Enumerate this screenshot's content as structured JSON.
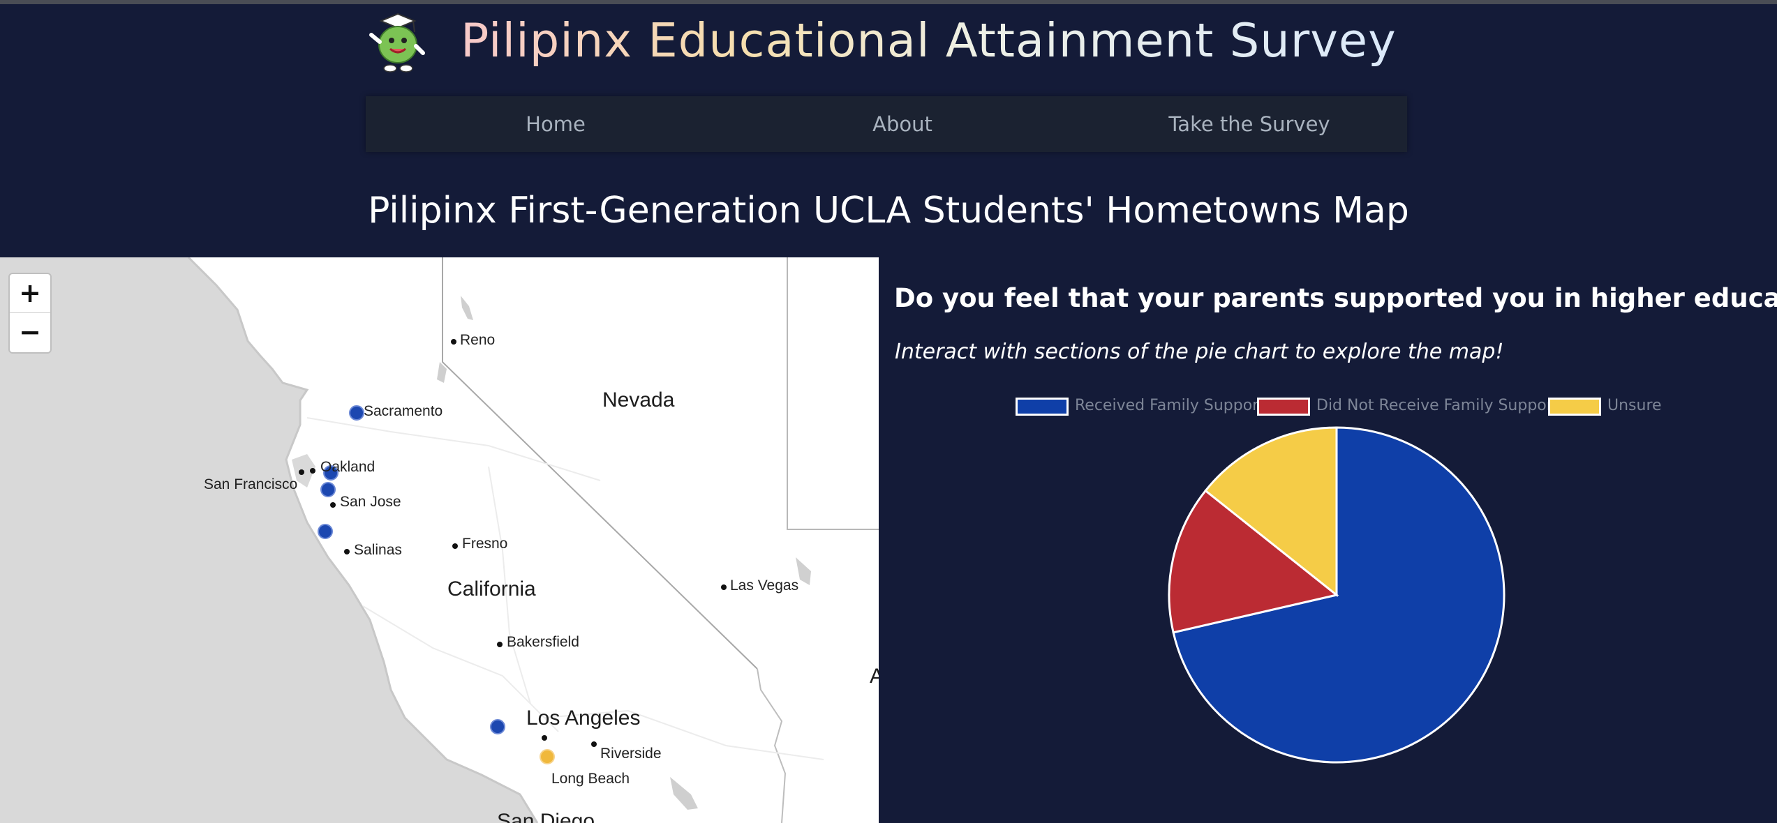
{
  "header": {
    "title": "Pilipinx Educational Attainment Survey",
    "mascot_icon": "graduate-mascot-icon"
  },
  "nav": {
    "items": [
      {
        "label": "Home"
      },
      {
        "label": "About"
      },
      {
        "label": "Take the Survey"
      }
    ]
  },
  "page": {
    "heading": "Pilipinx First-Generation UCLA Students' Hometowns Map"
  },
  "map": {
    "zoom_in_label": "+",
    "zoom_out_label": "−",
    "labels": {
      "reno": "Reno",
      "nevada": "Nevada",
      "sacramento": "Sacramento",
      "oakland": "Oakland",
      "san_francisco": "San Francisco",
      "san_jose": "San Jose",
      "fresno": "Fresno",
      "salinas": "Salinas",
      "california": "California",
      "las_vegas": "Las Vegas",
      "bakersfield": "Bakersfield",
      "los_angeles": "Los Angeles",
      "riverside": "Riverside",
      "long_beach": "Long Beach",
      "san_diego": "San Diego",
      "arizona_fragment": "A"
    }
  },
  "panel": {
    "question": "Do you feel that your parents supported you in higher education?",
    "instruction": "Interact with sections of the pie chart to explore the map!"
  },
  "colors": {
    "background": "#141b38",
    "received": "#0f3fa8",
    "not_received": "#bb2b33",
    "unsure": "#f5cc47",
    "marker_blue": "#1c47b0",
    "marker_yellow": "#f0b83c"
  },
  "chart_data": {
    "type": "pie",
    "categories": [
      "Received Family Support",
      "Did Not Receive Family Support",
      "Unsure"
    ],
    "values": [
      71.4,
      14.3,
      14.3
    ],
    "colors": [
      "#0f3fa8",
      "#bb2b33",
      "#f5cc47"
    ],
    "legend": "top"
  }
}
